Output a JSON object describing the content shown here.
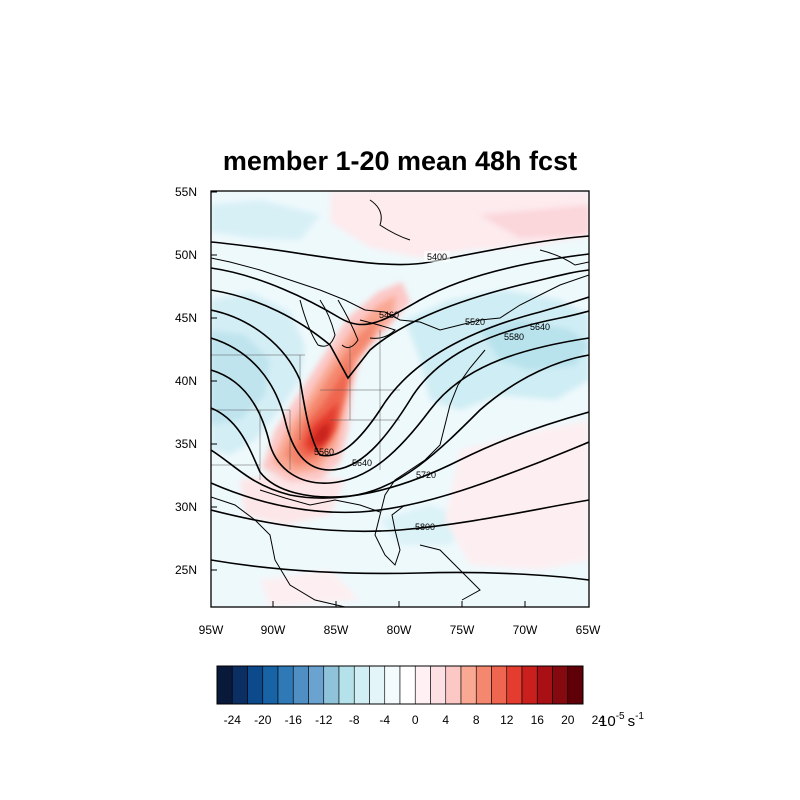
{
  "title": "member 1-20 mean 48h fcst",
  "map": {
    "lat_ticks": [
      "55N",
      "50N",
      "45N",
      "40N",
      "35N",
      "30N",
      "25N"
    ],
    "lon_ticks": [
      "95W",
      "90W",
      "85W",
      "80W",
      "75W",
      "70W",
      "65W"
    ],
    "contour_labels": [
      "5400",
      "5460",
      "5520",
      "5560",
      "5580",
      "5640",
      "5640",
      "5720",
      "5800"
    ]
  },
  "colorbar": {
    "ticks": [
      "-24",
      "-20",
      "-16",
      "-12",
      "-8",
      "-4",
      "0",
      "4",
      "8",
      "12",
      "16",
      "20",
      "24"
    ],
    "units_base": "10",
    "units_exp": "-5",
    "units_unit": "s",
    "units_exp2": "-1",
    "colors": [
      "#08193a",
      "#0b2f63",
      "#0c4a8c",
      "#1862a6",
      "#2f79b7",
      "#4f8fc4",
      "#6aa3cf",
      "#8fc3d9",
      "#b5e2ea",
      "#d2eef5",
      "#e4f5fa",
      "#f3fbfd",
      "#ffffff",
      "#fff1f3",
      "#fde0e3",
      "#fcc8c6",
      "#f9a893",
      "#f4876e",
      "#ef6650",
      "#e43d2f",
      "#c9201d",
      "#a91016",
      "#850a10",
      "#5f0008"
    ]
  }
}
